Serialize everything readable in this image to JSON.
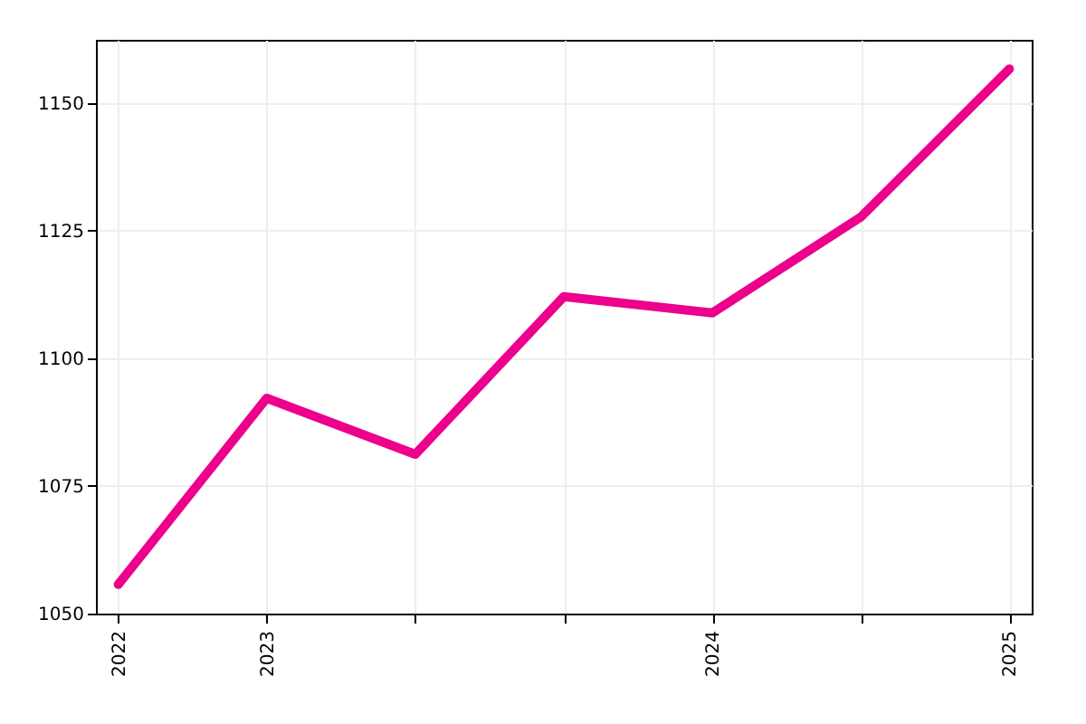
{
  "chart_data": {
    "type": "line",
    "categories": [
      "2022",
      "2023",
      null,
      null,
      "2024",
      null,
      "2025"
    ],
    "series": [
      {
        "color": "#ec008c",
        "values": [
          1055.7,
          1092.2,
          1081.2,
          1112.1,
          1108.9,
          1127.7,
          1156.7
        ]
      }
    ],
    "ylim": [
      1050,
      1162.4
    ],
    "yticks": [
      1050,
      1075,
      1100,
      1125,
      1150
    ],
    "grid": true,
    "legend": false,
    "marker": "none",
    "line_style": "solid"
  }
}
